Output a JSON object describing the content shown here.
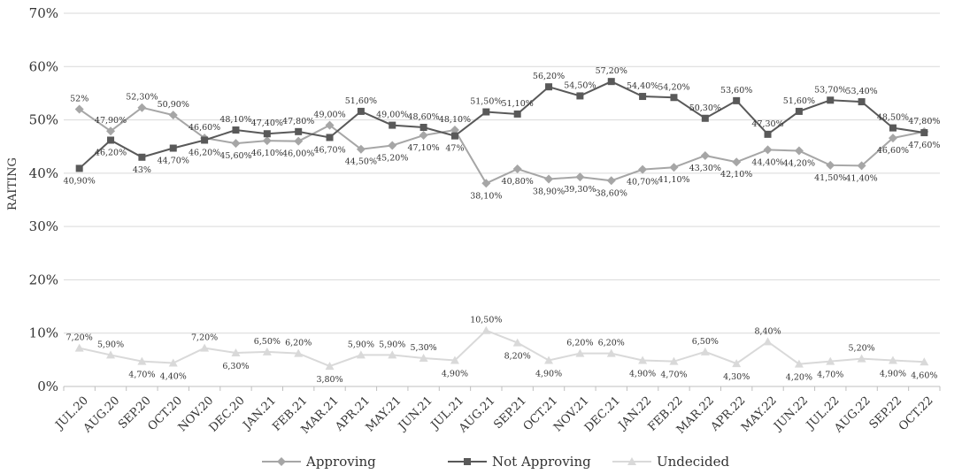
{
  "chart_data": {
    "type": "line",
    "ylabel": "RAITING",
    "ylim": [
      0,
      70
    ],
    "yticks": [
      "0%",
      "10%",
      "20%",
      "30%",
      "40%",
      "50%",
      "60%",
      "70%"
    ],
    "grid": true,
    "legend_position": "bottom",
    "categories": [
      "JUL.20",
      "AUG.20",
      "SEP.20",
      "OCT.20",
      "NOV.20",
      "DEC.20",
      "JAN.21",
      "FEB.21",
      "MAR.21",
      "APR.21",
      "MAY.21",
      "JUN.21",
      "JUL.21",
      "AUG.21",
      "SEP.21",
      "OCT.21",
      "NOV.21",
      "DEC.21",
      "JAN.22",
      "FEB.22",
      "MAR.22",
      "APR.22",
      "MAY.22",
      "JUN.22",
      "JUL.22",
      "AUG.22",
      "SEP.22",
      "OCT.22"
    ],
    "series": [
      {
        "name": "Approving",
        "marker": "diamond",
        "color": "#a6a6a6",
        "values": [
          52,
          47.9,
          52.3,
          50.9,
          46.6,
          45.6,
          46.1,
          46.0,
          49.0,
          44.5,
          45.2,
          47.1,
          48.1,
          38.1,
          40.8,
          38.9,
          39.3,
          38.6,
          40.7,
          41.1,
          43.3,
          42.1,
          44.4,
          44.2,
          41.5,
          41.4,
          46.6,
          47.8
        ],
        "labels": [
          "52%",
          "47,90%",
          "52,30%",
          "50,90%",
          "46,60%",
          "45,60%",
          "46,10%",
          "46,00%",
          "49,00%",
          "44,50%",
          "45,20%",
          "47,10%",
          "48,10%",
          "38,10%",
          "40,80%",
          "38,90%",
          "39,30%",
          "38,60%",
          "40,70%",
          "41,10%",
          "43,30%",
          "42,10%",
          "44,40%",
          "44,20%",
          "41,50%",
          "41,40%",
          "46,60%",
          "47,80%"
        ]
      },
      {
        "name": "Not Approving",
        "marker": "square",
        "color": "#595959",
        "values": [
          40.9,
          46.2,
          43,
          44.7,
          46.2,
          48.1,
          47.4,
          47.8,
          46.7,
          51.6,
          49.0,
          48.6,
          47,
          51.5,
          51.1,
          56.2,
          54.5,
          57.2,
          54.4,
          54.2,
          50.3,
          53.6,
          47.3,
          51.6,
          53.7,
          53.4,
          48.5,
          47.6
        ],
        "labels": [
          "40,90%",
          "46,20%",
          "43%",
          "44,70%",
          "46,20%",
          "48,10%",
          "47,40%",
          "47,80%",
          "46,70%",
          "51,60%",
          "49,00%",
          "48,60%",
          "47%",
          "51,50%",
          "51,10%",
          "56,20%",
          "54,50%",
          "57,20%",
          "54,40%",
          "54,20%",
          "50,30%",
          "53,60%",
          "47,30%",
          "51,60%",
          "53,70%",
          "53,40%",
          "48,50%",
          "47,60%"
        ]
      },
      {
        "name": "Undecided",
        "marker": "triangle",
        "color": "#d9d9d9",
        "values": [
          7.2,
          5.9,
          4.7,
          4.4,
          7.2,
          6.3,
          6.5,
          6.2,
          3.8,
          5.9,
          5.9,
          5.3,
          4.9,
          10.5,
          8.2,
          4.9,
          6.2,
          6.2,
          4.9,
          4.7,
          6.5,
          4.3,
          8.4,
          4.2,
          4.7,
          5.2,
          4.9,
          4.6
        ],
        "labels": [
          "7,20%",
          "5,90%",
          "4,70%",
          "4,40%",
          "7,20%",
          "6,30%",
          "6,50%",
          "6,20%",
          "3,80%",
          "5,90%",
          "5,90%",
          "5,30%",
          "4,90%",
          "10,50%",
          "8,20%",
          "4,90%",
          "6,20%",
          "6,20%",
          "4,90%",
          "4,70%",
          "6,50%",
          "4,30%",
          "8,40%",
          "4,20%",
          "4,70%",
          "5,20%",
          "4,90%",
          "4,60%"
        ]
      }
    ]
  }
}
